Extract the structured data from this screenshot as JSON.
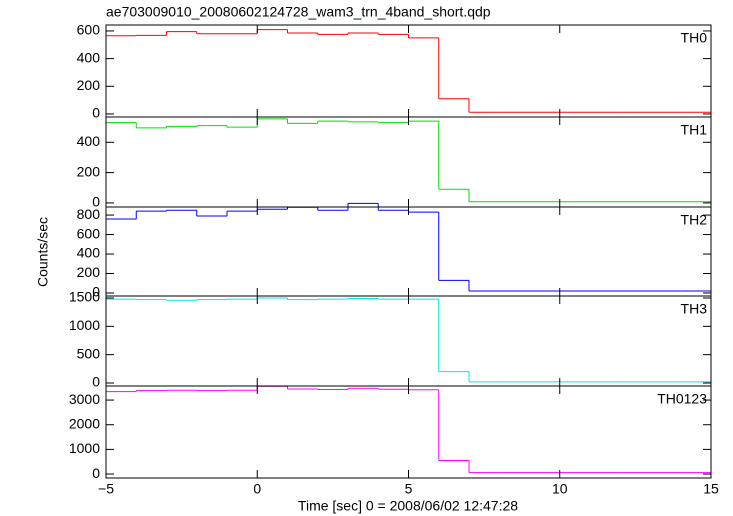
{
  "figure": {
    "title": "ae703009010_20080602124728_wam3_trn_4band_short.qdp",
    "xlabel": "Time [sec] 0 = 2008/06/02 12:47:28",
    "ylabel": "Counts/sec",
    "xlim": [
      -5,
      15
    ],
    "xticks": [
      {
        "value": -5,
        "label": "−5"
      },
      0,
      5,
      10,
      15
    ]
  },
  "chart_data": [
    {
      "type": "histogram",
      "label": "TH0",
      "color": "#ff0000",
      "bins": [
        -5,
        -4,
        -3,
        -2,
        -1,
        0,
        1,
        2,
        3,
        4,
        5,
        6,
        7,
        8,
        9,
        10,
        11,
        12,
        13,
        14,
        15
      ],
      "values": [
        565,
        568,
        595,
        580,
        580,
        610,
        585,
        575,
        585,
        575,
        550,
        110,
        12,
        12,
        12,
        12,
        12,
        12,
        12,
        12
      ],
      "ylim": [
        -22,
        643
      ],
      "yticks": [
        0,
        200,
        400,
        600
      ]
    },
    {
      "type": "histogram",
      "label": "TH1",
      "color": "#00e000",
      "bins": [
        -5,
        -4,
        -3,
        -2,
        -1,
        0,
        1,
        2,
        3,
        4,
        5,
        6,
        7,
        8,
        9,
        10,
        11,
        12,
        13,
        14,
        15
      ],
      "values": [
        530,
        495,
        505,
        510,
        500,
        555,
        525,
        540,
        535,
        530,
        540,
        90,
        8,
        8,
        8,
        8,
        8,
        8,
        8,
        8
      ],
      "ylim": [
        -27,
        567
      ],
      "yticks": [
        0,
        200,
        400
      ]
    },
    {
      "type": "histogram",
      "label": "TH2",
      "color": "#0000ff",
      "bins": [
        -5,
        -4,
        -3,
        -2,
        -1,
        0,
        1,
        2,
        3,
        4,
        5,
        6,
        7,
        8,
        9,
        10,
        11,
        12,
        13,
        14,
        15
      ],
      "values": [
        760,
        840,
        850,
        790,
        840,
        860,
        880,
        850,
        920,
        850,
        830,
        130,
        20,
        20,
        20,
        20,
        20,
        20,
        20,
        20
      ],
      "ylim": [
        -31,
        883
      ],
      "yticks": [
        0,
        200,
        400,
        600,
        800
      ]
    },
    {
      "type": "histogram",
      "label": "TH3",
      "color": "#00e8e8",
      "bins": [
        -5,
        -4,
        -3,
        -2,
        -1,
        0,
        1,
        2,
        3,
        4,
        5,
        6,
        7,
        8,
        9,
        10,
        11,
        12,
        13,
        14,
        15
      ],
      "values": [
        1480,
        1470,
        1460,
        1470,
        1480,
        1500,
        1470,
        1480,
        1490,
        1480,
        1480,
        200,
        20,
        20,
        20,
        20,
        20,
        20,
        20,
        20
      ],
      "ylim": [
        -53,
        1535
      ],
      "yticks": [
        0,
        500,
        1000,
        1500
      ]
    },
    {
      "type": "histogram",
      "label": "TH0123",
      "color": "#ff00ff",
      "bins": [
        -5,
        -4,
        -3,
        -2,
        -1,
        0,
        1,
        2,
        3,
        4,
        5,
        6,
        7,
        8,
        9,
        10,
        11,
        12,
        13,
        14,
        15
      ],
      "values": [
        3340,
        3380,
        3400,
        3380,
        3400,
        3560,
        3450,
        3430,
        3480,
        3440,
        3420,
        550,
        60,
        60,
        60,
        60,
        60,
        60,
        60,
        60
      ],
      "ylim": [
        -160,
        3570
      ],
      "yticks": [
        0,
        1000,
        2000,
        3000
      ]
    }
  ]
}
